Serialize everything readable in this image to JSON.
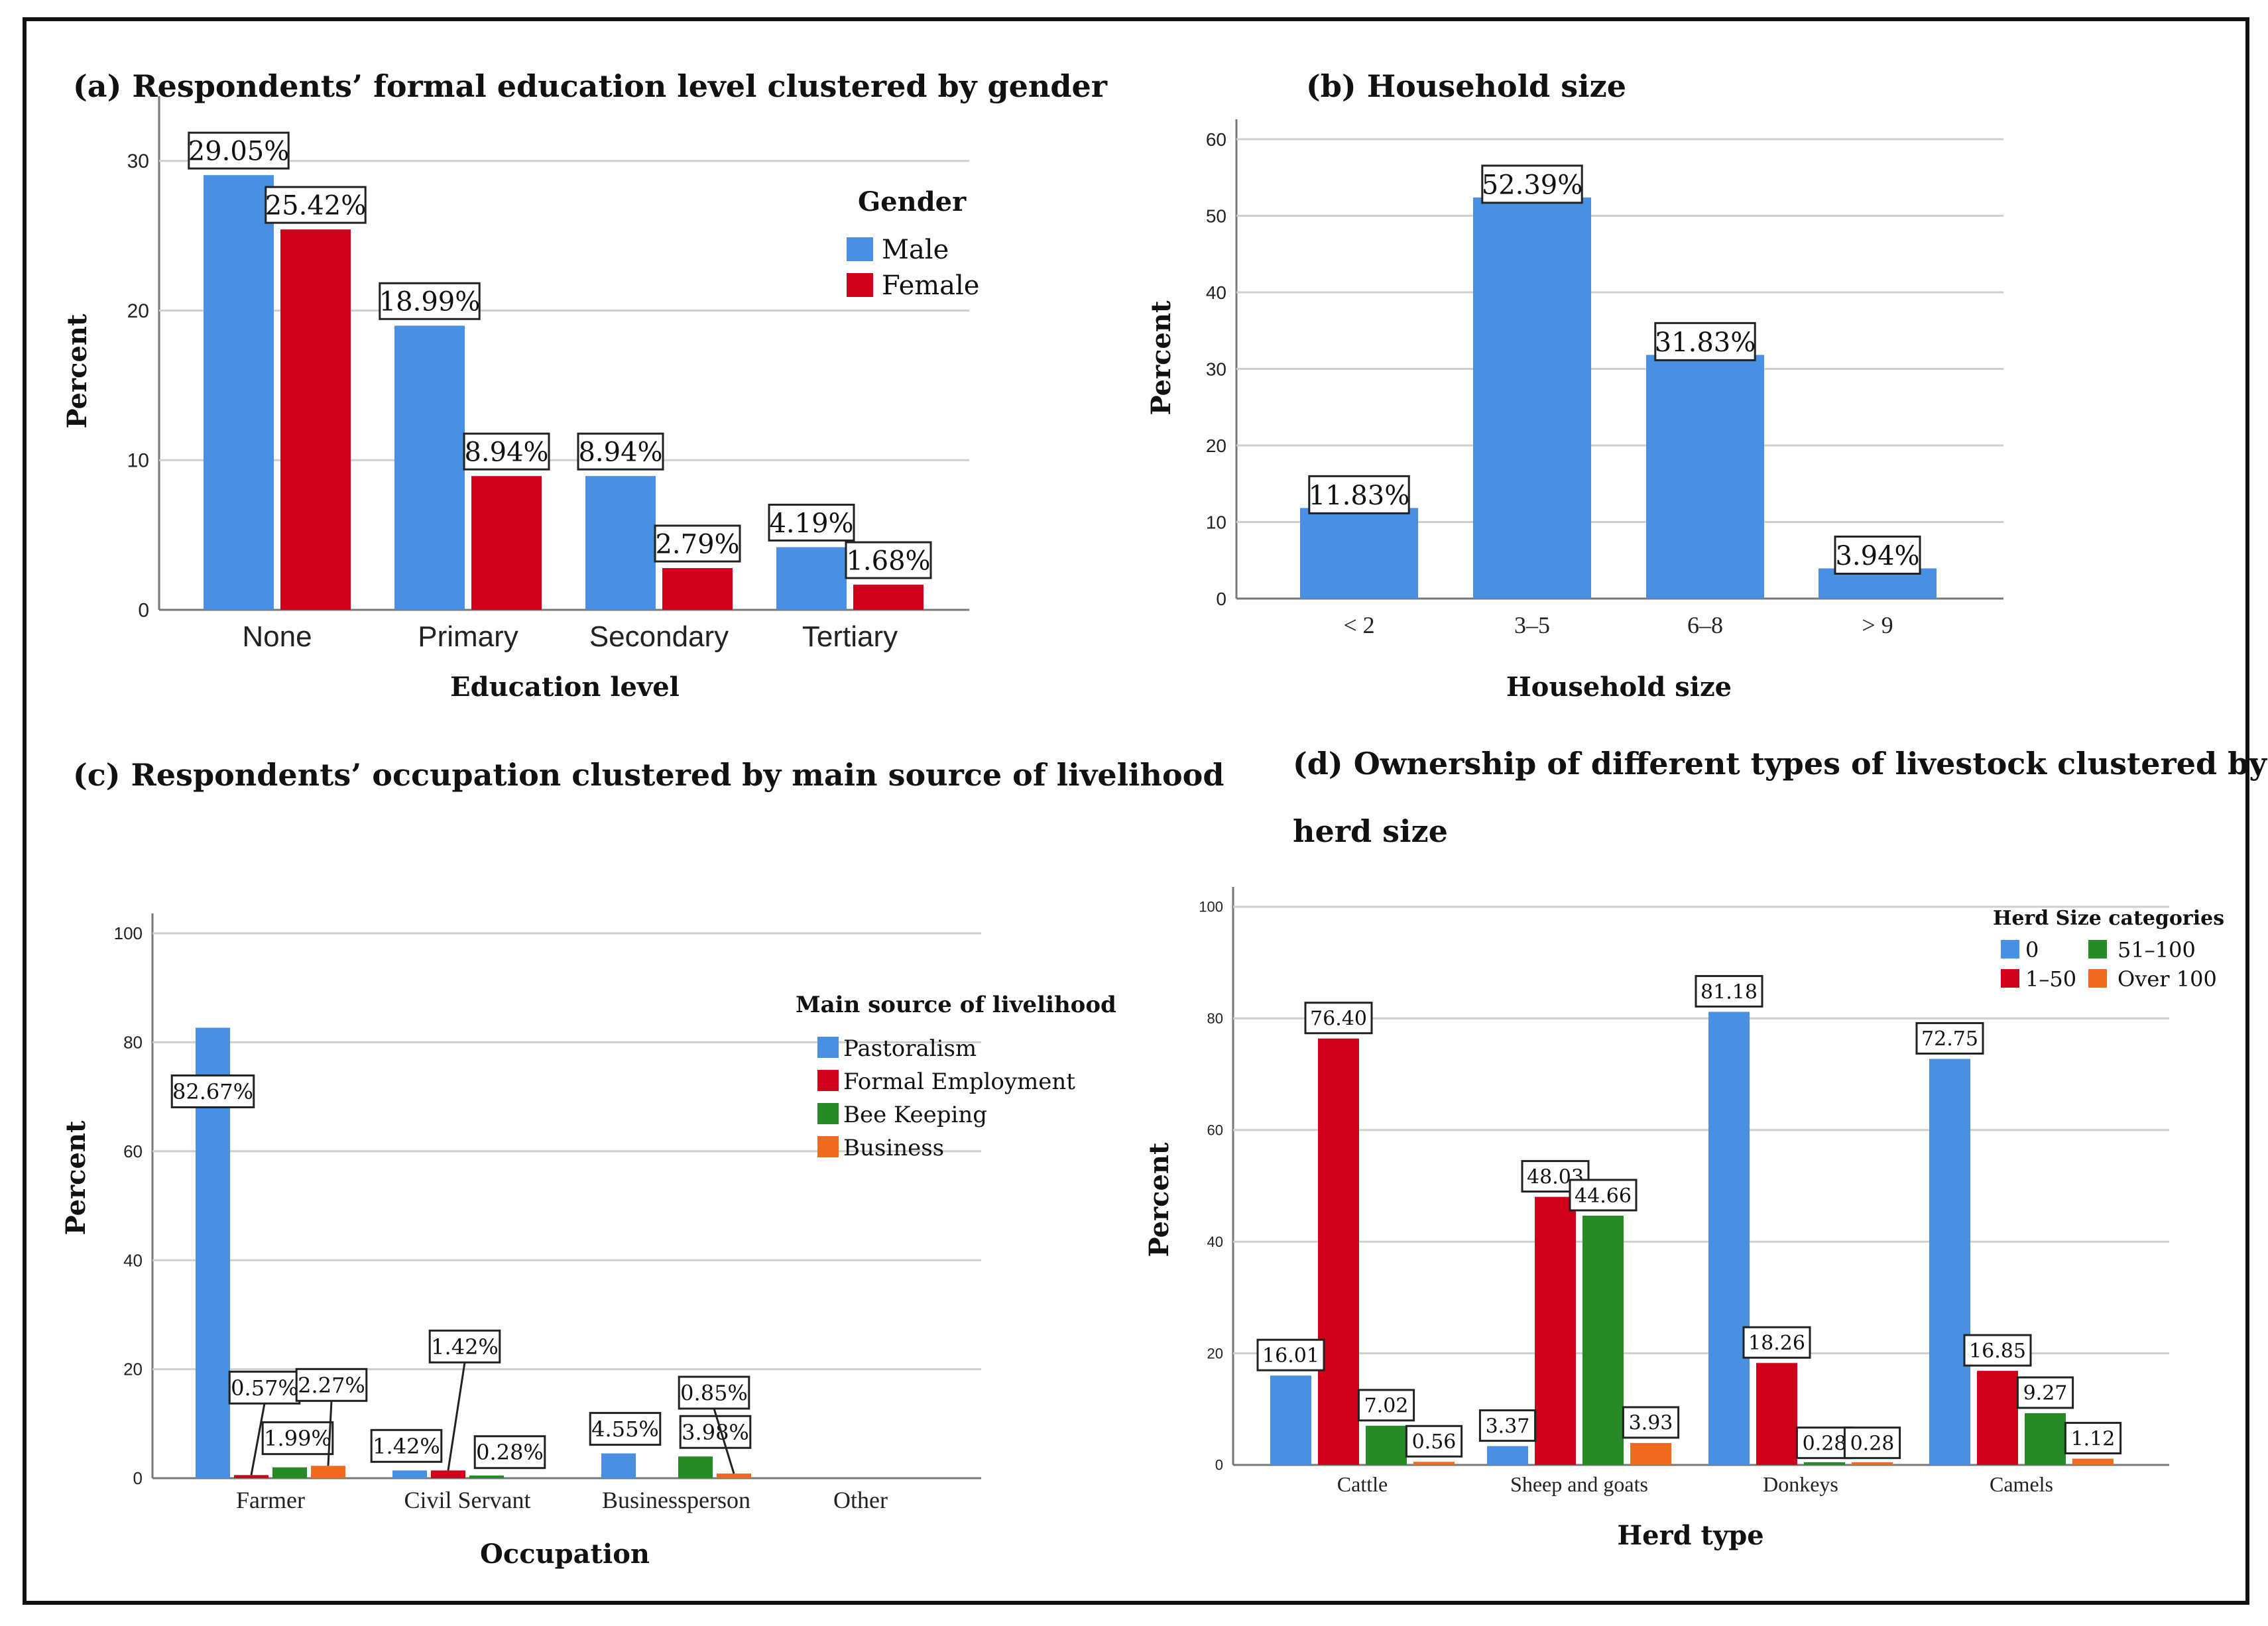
{
  "colors": {
    "blue": "#4a90e2",
    "red": "#d0021b",
    "green": "#268a26",
    "orange": "#f06a22"
  },
  "chart_data": [
    {
      "id": "a",
      "type": "bar",
      "title": "(a) Respondents’ formal education level clustered by gender",
      "xlabel": "Education level",
      "ylabel": "Percent",
      "ylim": [
        0,
        33
      ],
      "yticks": [
        "0",
        "10",
        "20",
        "30"
      ],
      "grid": true,
      "categories": [
        "None",
        "Primary",
        "Secondary",
        "Tertiary"
      ],
      "legend": {
        "title": "Gender",
        "placement": "top-right"
      },
      "series": [
        {
          "name": "Male",
          "color": "blue",
          "values": [
            29.05,
            18.99,
            8.94,
            4.19
          ],
          "labels": [
            "29.05%",
            "18.99%",
            "8.94%",
            "4.19%"
          ]
        },
        {
          "name": "Female",
          "color": "red",
          "values": [
            25.42,
            8.94,
            2.79,
            1.68
          ],
          "labels": [
            "25.42%",
            "8.94%",
            "2.79%",
            "1.68%"
          ]
        }
      ]
    },
    {
      "id": "b",
      "type": "bar",
      "title": "(b) Household size",
      "xlabel": "Household size",
      "ylabel": "Percent",
      "ylim": [
        0,
        60
      ],
      "yticks": [
        "0",
        "10",
        "20",
        "30",
        "40",
        "50",
        "60"
      ],
      "grid": true,
      "categories": [
        "< 2",
        "3–5",
        "6–8",
        "> 9"
      ],
      "series": [
        {
          "name": "Percent",
          "color": "blue",
          "values": [
            11.83,
            52.39,
            31.83,
            3.94
          ],
          "labels": [
            "11.83%",
            "52.39%",
            "31.83%",
            "3.94%"
          ]
        }
      ]
    },
    {
      "id": "c",
      "type": "bar",
      "title": "(c) Respondents’ occupation clustered by main source of livelihood",
      "xlabel": "Occupation",
      "ylabel": "Percent",
      "ylim": [
        0,
        100
      ],
      "yticks": [
        "0",
        "20",
        "40",
        "60",
        "80",
        "100"
      ],
      "grid": true,
      "categories": [
        "Farmer",
        "Civil Servant",
        "Businessperson",
        "Other"
      ],
      "legend": {
        "title": "Main source of livelihood",
        "placement": "center-right"
      },
      "series": [
        {
          "name": "Pastoralism",
          "color": "blue",
          "values": [
            82.67,
            1.42,
            4.55,
            null
          ],
          "labels": [
            "82.67%",
            "1.42%",
            "4.55%",
            null
          ]
        },
        {
          "name": "Formal Employment",
          "color": "red",
          "values": [
            0.57,
            1.42,
            null,
            null
          ],
          "labels": [
            "0.57%",
            "1.42%",
            null,
            null
          ]
        },
        {
          "name": "Bee Keeping",
          "color": "green",
          "values": [
            1.99,
            0.28,
            3.98,
            null
          ],
          "labels": [
            "1.99%",
            "0.28%",
            "3.98%",
            null
          ]
        },
        {
          "name": "Business",
          "color": "orange",
          "values": [
            2.27,
            null,
            0.85,
            null
          ],
          "labels": [
            "2.27%",
            null,
            "0.85%",
            null
          ]
        }
      ]
    },
    {
      "id": "d",
      "type": "bar",
      "title_line1": "(d) Ownership of different types of livestock clustered by",
      "title_line2": "herd size",
      "xlabel": "Herd type",
      "ylabel": "Percent",
      "ylim": [
        0,
        100
      ],
      "yticks": [
        "0",
        "20",
        "40",
        "60",
        "80",
        "100"
      ],
      "grid": true,
      "categories": [
        "Cattle",
        "Sheep and goats",
        "Donkeys",
        "Camels"
      ],
      "legend": {
        "title": "Herd Size categories",
        "placement": "top-right"
      },
      "series": [
        {
          "name": "0",
          "color": "blue",
          "values": [
            16.01,
            3.37,
            81.18,
            72.75
          ],
          "labels": [
            "16.01",
            "3.37",
            "81.18",
            "72.75"
          ]
        },
        {
          "name": "1–50",
          "color": "red",
          "values": [
            76.4,
            48.03,
            18.26,
            16.85
          ],
          "labels": [
            "76.40",
            "48.03",
            "18.26",
            "16.85"
          ]
        },
        {
          "name": "51–100",
          "color": "green",
          "values": [
            7.02,
            44.66,
            0.28,
            9.27
          ],
          "labels": [
            "7.02",
            "44.66",
            "0.28",
            "9.27"
          ]
        },
        {
          "name": "Over 100",
          "color": "orange",
          "values": [
            0.56,
            3.93,
            0.28,
            1.12
          ],
          "labels": [
            "0.56",
            "3.93",
            "0.28",
            "1.12"
          ]
        }
      ]
    }
  ]
}
